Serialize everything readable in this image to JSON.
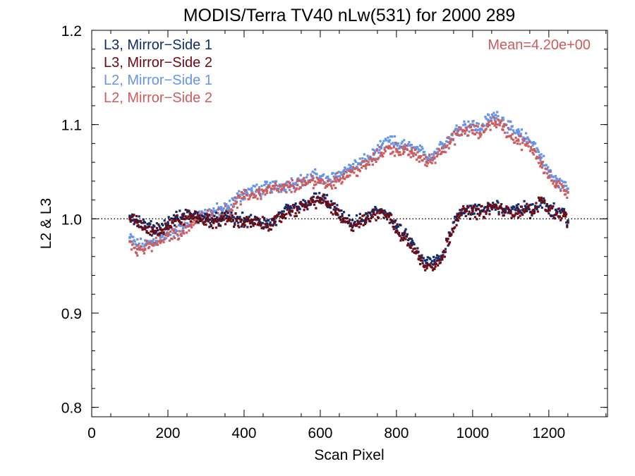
{
  "chart_data": {
    "type": "scatter",
    "title": "MODIS/Terra TV40 nLw(531) for 2000 289",
    "xlabel": "Scan Pixel",
    "ylabel": "L2 & L3",
    "xlim": [
      0,
      1354
    ],
    "ylim": [
      0.79,
      1.2
    ],
    "xticks": [
      0,
      200,
      400,
      600,
      800,
      1000,
      1200
    ],
    "xtick_labels": [
      "0",
      "200",
      "400",
      "600",
      "800",
      "1000",
      "1200"
    ],
    "yticks": [
      0.8,
      0.9,
      1.0,
      1.1,
      1.2
    ],
    "ytick_labels": [
      "0.8",
      "0.9",
      "1.0",
      "1.1",
      "1.2"
    ],
    "reference_line": 1.0,
    "annotation": "Mean=4.20e+00",
    "annotation_color": "#cd5c5c",
    "grid": false,
    "legend_position": "top-left",
    "series": [
      {
        "name": "L3, Mirror−Side 1",
        "color": "#0f2c6b",
        "x": [
          100,
          120,
          140,
          160,
          180,
          200,
          220,
          240,
          260,
          280,
          300,
          320,
          340,
          360,
          380,
          400,
          420,
          440,
          460,
          480,
          500,
          520,
          540,
          560,
          580,
          600,
          620,
          640,
          660,
          680,
          700,
          720,
          740,
          760,
          780,
          800,
          820,
          840,
          860,
          880,
          900,
          920,
          940,
          960,
          980,
          1000,
          1020,
          1040,
          1060,
          1080,
          1100,
          1120,
          1140,
          1160,
          1180,
          1200,
          1220,
          1240,
          1250
        ],
        "y": [
          1.003,
          0.998,
          0.992,
          0.99,
          0.99,
          0.995,
          1.0,
          1.003,
          1.005,
          1.003,
          1.0,
          0.998,
          1.0,
          1.002,
          1.0,
          0.998,
          0.997,
          0.997,
          0.995,
          0.997,
          1.005,
          1.01,
          1.012,
          1.015,
          1.02,
          1.022,
          1.018,
          1.01,
          1.0,
          0.995,
          0.997,
          1.0,
          1.007,
          1.01,
          1.005,
          0.99,
          0.983,
          0.975,
          0.96,
          0.953,
          0.955,
          0.96,
          0.985,
          1.005,
          1.01,
          1.01,
          1.008,
          1.012,
          1.015,
          1.01,
          1.008,
          1.01,
          1.012,
          1.008,
          1.02,
          1.012,
          1.008,
          1.007,
          0.998
        ]
      },
      {
        "name": "L3, Mirror−Side 2",
        "color": "#6e0a14",
        "x": [
          100,
          120,
          140,
          160,
          180,
          200,
          220,
          240,
          260,
          280,
          300,
          320,
          340,
          360,
          380,
          400,
          420,
          440,
          460,
          480,
          500,
          520,
          540,
          560,
          580,
          600,
          620,
          640,
          660,
          680,
          700,
          720,
          740,
          760,
          780,
          800,
          820,
          840,
          860,
          880,
          900,
          920,
          940,
          960,
          980,
          1000,
          1020,
          1040,
          1060,
          1080,
          1100,
          1120,
          1140,
          1160,
          1180,
          1200,
          1220,
          1240,
          1250
        ],
        "y": [
          1.001,
          0.996,
          0.99,
          0.988,
          0.989,
          0.993,
          0.998,
          1.0,
          1.003,
          1.001,
          0.998,
          0.996,
          0.998,
          1.0,
          0.998,
          0.996,
          0.996,
          0.995,
          0.994,
          0.996,
          1.003,
          1.008,
          1.01,
          1.014,
          1.018,
          1.02,
          1.016,
          1.008,
          0.998,
          0.993,
          0.995,
          0.998,
          1.005,
          1.008,
          1.003,
          0.987,
          0.98,
          0.972,
          0.957,
          0.95,
          0.952,
          0.957,
          0.982,
          1.003,
          1.008,
          1.008,
          1.006,
          1.01,
          1.013,
          1.008,
          1.006,
          1.008,
          1.01,
          1.006,
          1.022,
          1.01,
          1.006,
          1.005,
          0.996
        ]
      },
      {
        "name": "L2, Mirror−Side 1",
        "color": "#6495ed",
        "x": [
          100,
          120,
          140,
          160,
          180,
          200,
          220,
          240,
          260,
          280,
          300,
          320,
          340,
          360,
          380,
          400,
          420,
          440,
          460,
          480,
          500,
          520,
          540,
          560,
          580,
          600,
          620,
          640,
          660,
          680,
          700,
          720,
          740,
          760,
          780,
          800,
          820,
          840,
          860,
          880,
          900,
          920,
          940,
          960,
          980,
          1000,
          1020,
          1040,
          1060,
          1080,
          1100,
          1120,
          1140,
          1160,
          1180,
          1200,
          1220,
          1240,
          1250
        ],
        "y": [
          0.98,
          0.972,
          0.972,
          0.976,
          0.98,
          0.985,
          0.988,
          0.99,
          0.997,
          1.003,
          1.006,
          1.008,
          1.01,
          1.012,
          1.022,
          1.027,
          1.03,
          1.03,
          1.033,
          1.035,
          1.035,
          1.038,
          1.04,
          1.04,
          1.045,
          1.045,
          1.04,
          1.045,
          1.05,
          1.055,
          1.058,
          1.062,
          1.068,
          1.075,
          1.082,
          1.08,
          1.077,
          1.075,
          1.072,
          1.065,
          1.07,
          1.08,
          1.085,
          1.095,
          1.1,
          1.1,
          1.095,
          1.105,
          1.11,
          1.105,
          1.095,
          1.09,
          1.085,
          1.08,
          1.065,
          1.05,
          1.04,
          1.035,
          1.032
        ]
      },
      {
        "name": "L2, Mirror−Side 2",
        "color": "#cd5c5c",
        "x": [
          100,
          120,
          140,
          160,
          180,
          200,
          220,
          240,
          260,
          280,
          300,
          320,
          340,
          360,
          380,
          400,
          420,
          440,
          460,
          480,
          500,
          520,
          540,
          560,
          580,
          600,
          620,
          640,
          660,
          680,
          700,
          720,
          740,
          760,
          780,
          800,
          820,
          840,
          860,
          880,
          900,
          920,
          940,
          960,
          980,
          1000,
          1020,
          1040,
          1060,
          1080,
          1100,
          1120,
          1140,
          1160,
          1180,
          1200,
          1220,
          1240,
          1250
        ],
        "y": [
          0.976,
          0.968,
          0.968,
          0.972,
          0.977,
          0.982,
          0.985,
          0.987,
          0.994,
          0.999,
          1.002,
          1.003,
          1.005,
          1.008,
          1.018,
          1.023,
          1.026,
          1.027,
          1.03,
          1.032,
          1.031,
          1.034,
          1.036,
          1.036,
          1.041,
          1.04,
          1.036,
          1.04,
          1.045,
          1.05,
          1.052,
          1.057,
          1.063,
          1.07,
          1.075,
          1.074,
          1.071,
          1.07,
          1.066,
          1.06,
          1.065,
          1.075,
          1.08,
          1.09,
          1.093,
          1.094,
          1.09,
          1.1,
          1.103,
          1.098,
          1.088,
          1.083,
          1.078,
          1.073,
          1.06,
          1.045,
          1.035,
          1.03,
          1.028
        ]
      }
    ]
  }
}
